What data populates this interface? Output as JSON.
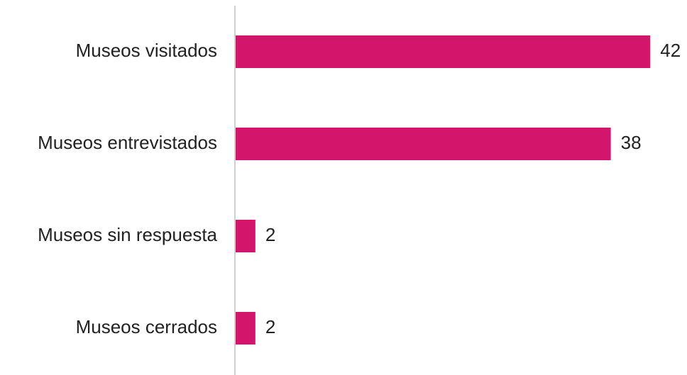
{
  "chart_data": {
    "type": "bar",
    "orientation": "horizontal",
    "categories": [
      "Museos visitados",
      "Museos entrevistados",
      "Museos sin respuesta",
      "Museos cerrados"
    ],
    "values": [
      42,
      38,
      2,
      2
    ],
    "color": "#d3166b",
    "xlim": [
      0,
      45
    ],
    "grid": false
  }
}
